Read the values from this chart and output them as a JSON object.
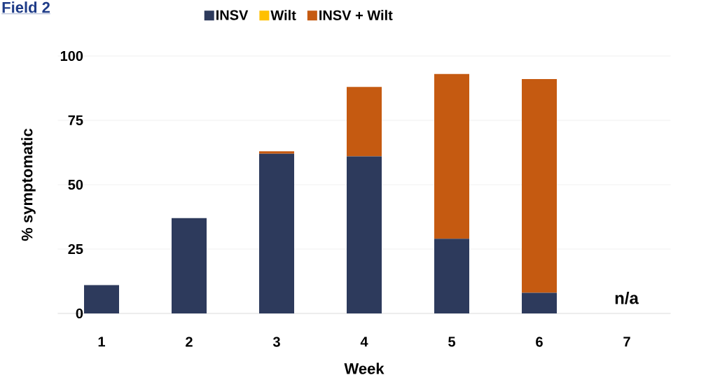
{
  "chart_data": {
    "type": "bar",
    "stacked": true,
    "title": "Field 2",
    "xlabel": "Week",
    "ylabel": "% symptomatic",
    "categories": [
      "1",
      "2",
      "3",
      "4",
      "5",
      "6",
      "7"
    ],
    "series": [
      {
        "name": "INSV",
        "color": "#2d3a5c",
        "values": [
          11,
          37,
          62,
          61,
          29,
          8,
          null
        ]
      },
      {
        "name": "Wilt",
        "color": "#ffc000",
        "values": [
          0,
          0,
          0,
          0,
          0,
          0,
          null
        ]
      },
      {
        "name": "INSV + Wilt",
        "color": "#c55a11",
        "values": [
          0,
          0,
          1,
          27,
          64,
          83,
          null
        ]
      }
    ],
    "ylim": [
      0,
      100
    ],
    "yticks": [
      0,
      25,
      50,
      75,
      100
    ],
    "grid": "y",
    "legend": "top",
    "annotations": [
      "n/a"
    ]
  }
}
